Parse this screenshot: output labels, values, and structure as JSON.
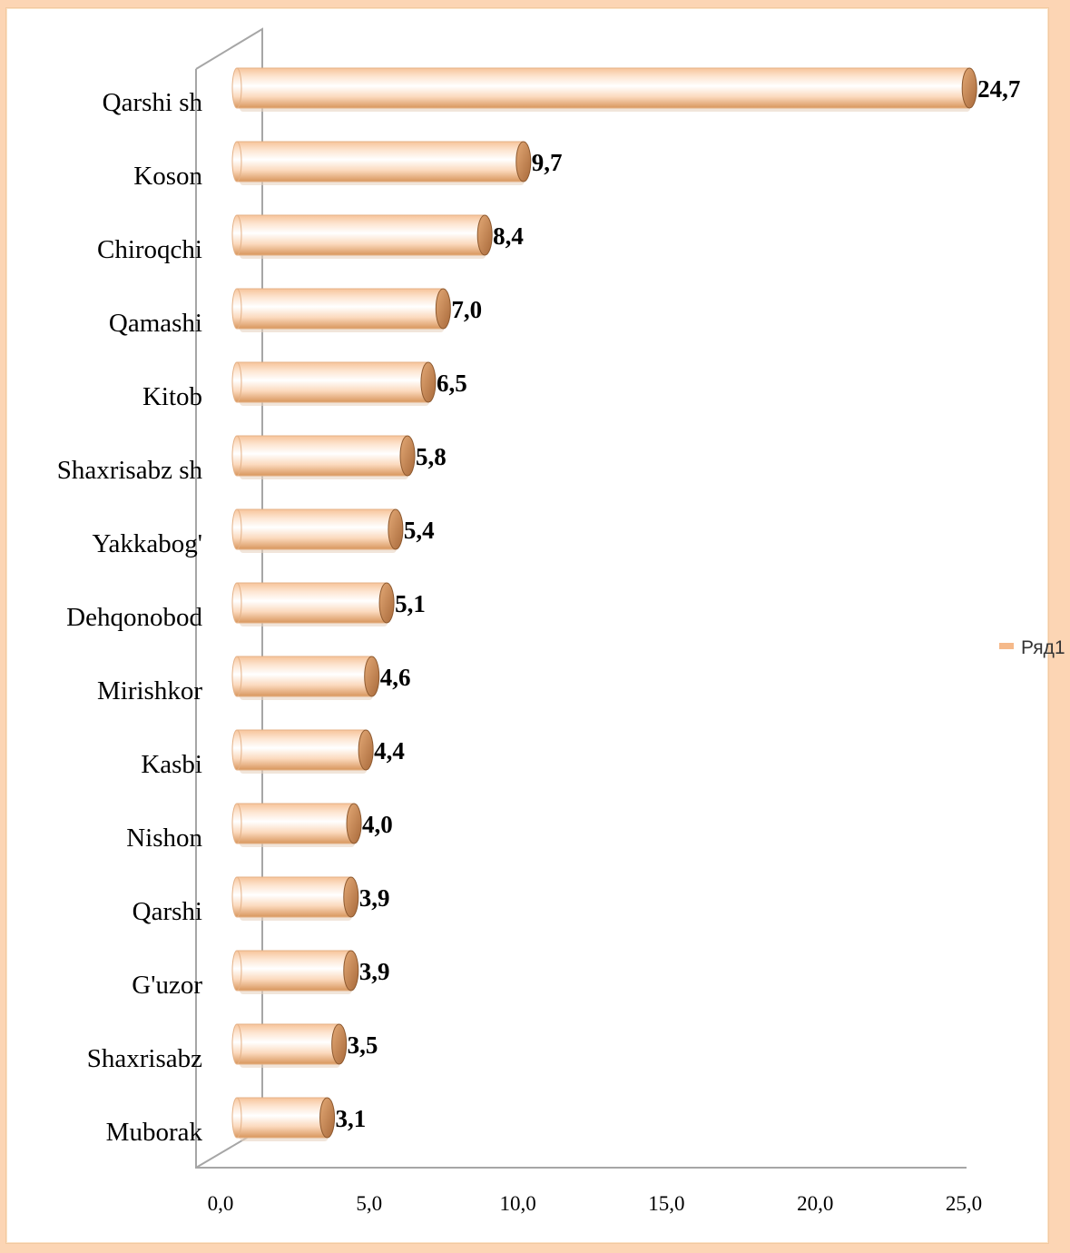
{
  "chart_data": {
    "type": "bar",
    "orientation": "horizontal",
    "style": "3d-cylinder",
    "categories": [
      "Qarshi sh",
      "Koson",
      "Chiroqchi",
      "Qamashi",
      "Kitob",
      "Shaxrisabz sh",
      "Yakkabog'",
      "Dehqonobod",
      "Mirishkor",
      "Kasbi",
      "Nishon",
      "Qarshi",
      "G'uzor",
      "Shaxrisabz",
      "Muborak"
    ],
    "series": [
      {
        "name": "Ряд1",
        "values": [
          24.7,
          9.7,
          8.4,
          7.0,
          6.5,
          5.8,
          5.4,
          5.1,
          4.6,
          4.4,
          4.0,
          3.9,
          3.9,
          3.5,
          3.1
        ],
        "labels": [
          "24,7",
          "9,7",
          "8,4",
          "7,0",
          "6,5",
          "5,8",
          "5,4",
          "5,1",
          "4,6",
          "4,4",
          "4,0",
          "3,9",
          "3,9",
          "3,5",
          "3,1"
        ]
      }
    ],
    "xlim": [
      0,
      25
    ],
    "x_ticks": [
      0,
      5,
      10,
      15,
      20,
      25
    ],
    "x_tick_labels": [
      "0,0",
      "5,0",
      "10,0",
      "15,0",
      "20,0",
      "25,0"
    ],
    "grid": false,
    "legend_position": "right",
    "colors": {
      "bar_light": "#fff7ef",
      "bar_mid": "#f8c9a0",
      "bar_dark": "#d99a62",
      "cap": "#c8894f",
      "axis": "#a6a6a6",
      "page_background": "#fcd5b4"
    }
  }
}
